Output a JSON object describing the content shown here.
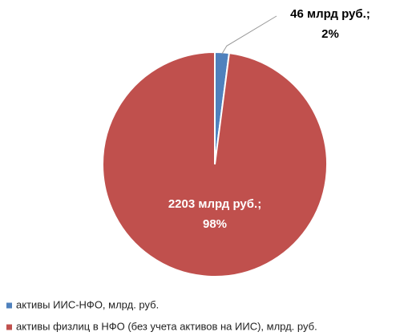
{
  "chart_data": {
    "type": "pie",
    "categories": [
      "активы ИИС-НФО, млрд. руб.",
      "активы физлиц в НФО (без учета активов на ИИС), млрд. руб."
    ],
    "values": [
      46,
      2203
    ],
    "value_labels": [
      [
        "46 млрд руб.;",
        "2%"
      ],
      [
        "2203 млрд руб.;",
        "98%"
      ]
    ],
    "colors": [
      "#4f81bd",
      "#c0504d"
    ],
    "legend": "bottom-left"
  }
}
